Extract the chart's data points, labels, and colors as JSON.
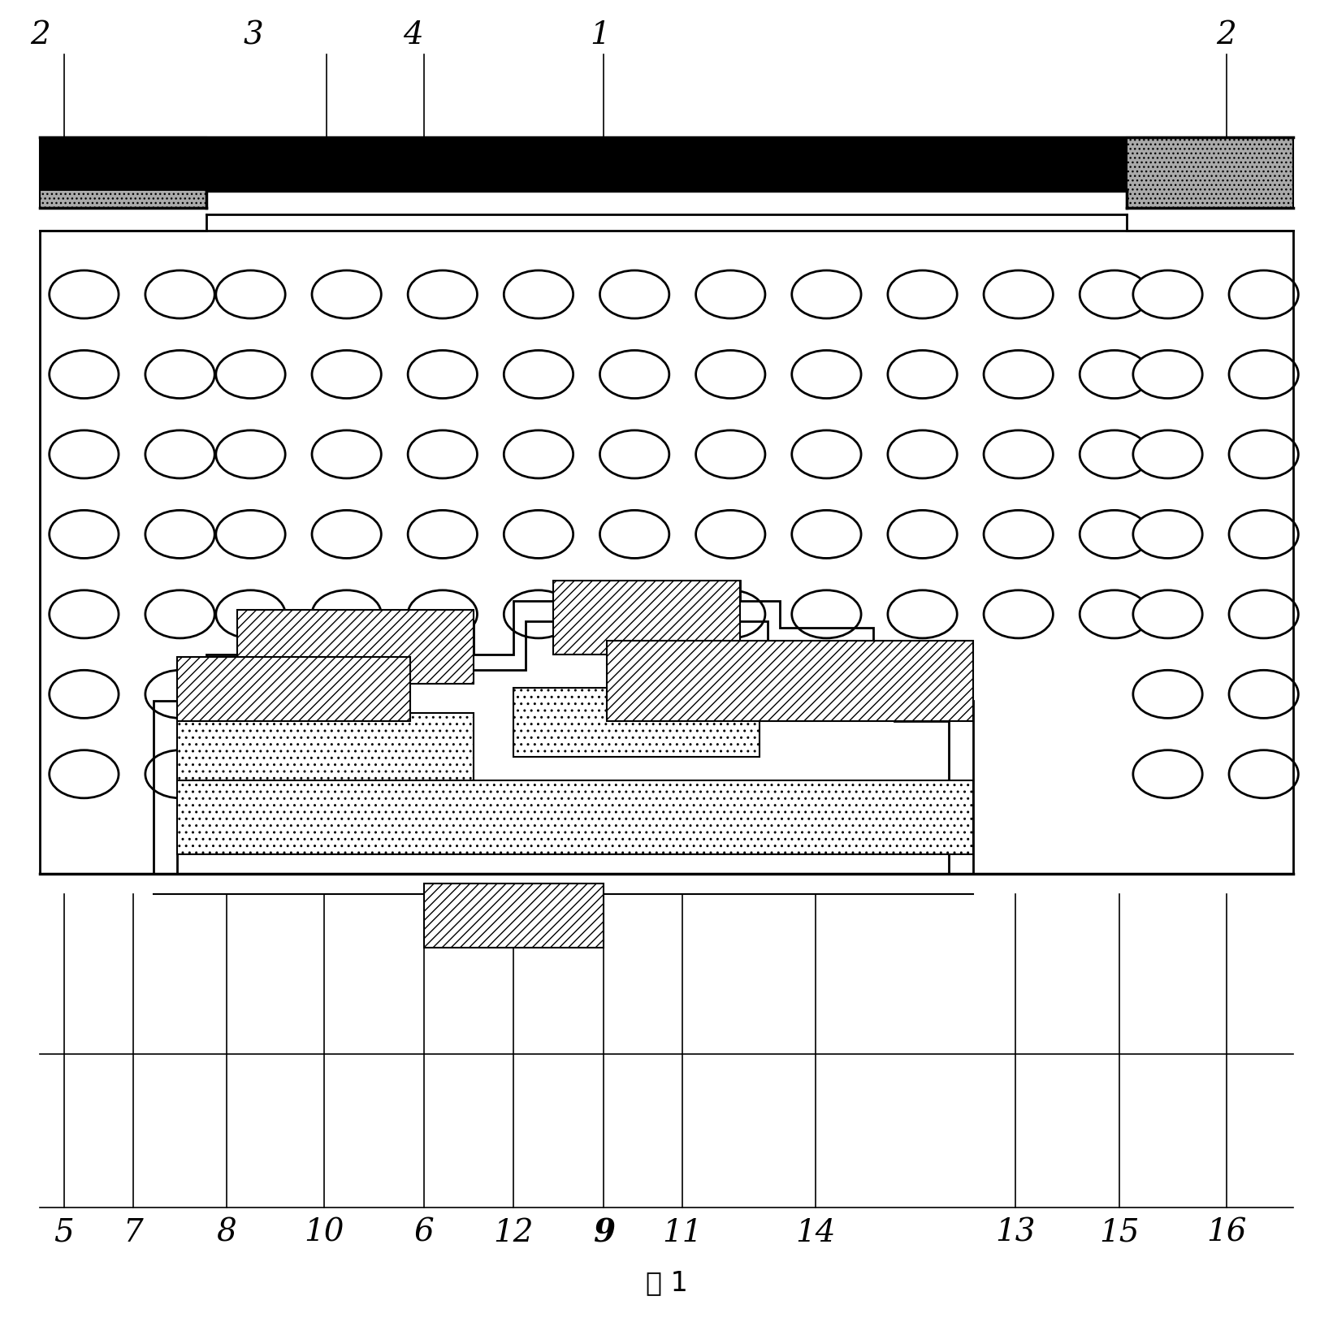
{
  "fig_width": 16.41,
  "fig_height": 16.44,
  "bg_color": "#ffffff",
  "title_text": "图 1"
}
